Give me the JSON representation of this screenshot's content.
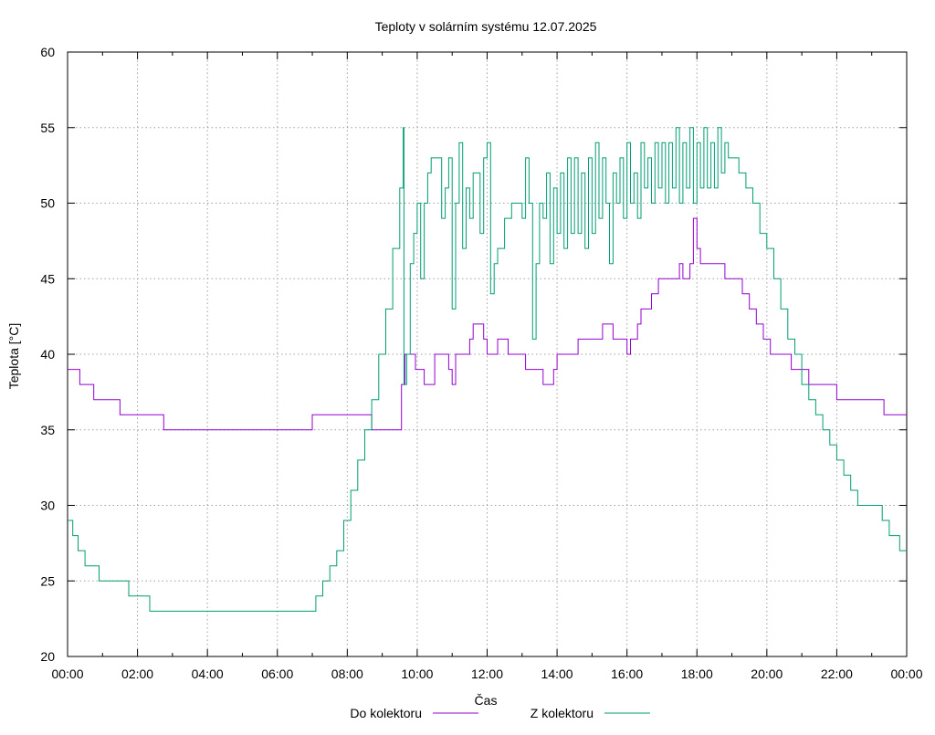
{
  "chart_data": {
    "type": "line",
    "title": "Teploty v solárním systému 12.07.2025",
    "xlabel": "Čas",
    "ylabel": "Teplota [°C]",
    "xlim": [
      0,
      24
    ],
    "ylim": [
      20,
      60
    ],
    "x_ticks": [
      "00:00",
      "02:00",
      "04:00",
      "06:00",
      "08:00",
      "10:00",
      "12:00",
      "14:00",
      "16:00",
      "18:00",
      "20:00",
      "22:00",
      "00:00"
    ],
    "y_ticks": [
      "20",
      "25",
      "30",
      "35",
      "40",
      "45",
      "50",
      "55",
      "60"
    ],
    "grid": true,
    "legend_position": "bottom",
    "series": [
      {
        "name": "Do kolektoru",
        "color": "#9400d3",
        "points": [
          [
            0,
            39
          ],
          [
            0.35,
            39
          ],
          [
            0.35,
            38
          ],
          [
            0.75,
            38
          ],
          [
            0.75,
            37
          ],
          [
            1.5,
            37
          ],
          [
            1.5,
            36
          ],
          [
            2.75,
            36
          ],
          [
            2.75,
            35
          ],
          [
            7,
            35
          ],
          [
            7,
            36
          ],
          [
            8.7,
            36
          ],
          [
            8.7,
            35
          ],
          [
            9.5,
            35
          ],
          [
            9.55,
            38
          ],
          [
            9.65,
            40
          ],
          [
            9.9,
            40
          ],
          [
            9.95,
            39
          ],
          [
            10.1,
            39
          ],
          [
            10.2,
            38
          ],
          [
            10.5,
            40
          ],
          [
            10.8,
            40
          ],
          [
            10.9,
            39
          ],
          [
            11.0,
            38
          ],
          [
            11.1,
            40
          ],
          [
            11.3,
            40
          ],
          [
            11.5,
            41
          ],
          [
            11.6,
            42
          ],
          [
            11.8,
            42
          ],
          [
            11.9,
            41
          ],
          [
            12.0,
            40
          ],
          [
            12.2,
            40
          ],
          [
            12.3,
            41
          ],
          [
            12.5,
            41
          ],
          [
            12.6,
            40
          ],
          [
            13.0,
            40
          ],
          [
            13.1,
            39
          ],
          [
            13.5,
            39
          ],
          [
            13.6,
            38
          ],
          [
            13.8,
            38
          ],
          [
            13.9,
            39
          ],
          [
            14.0,
            40
          ],
          [
            14.5,
            40
          ],
          [
            14.6,
            41
          ],
          [
            15.2,
            41
          ],
          [
            15.3,
            42
          ],
          [
            15.5,
            42
          ],
          [
            15.6,
            41
          ],
          [
            15.9,
            41
          ],
          [
            16.0,
            40
          ],
          [
            16.1,
            41
          ],
          [
            16.3,
            42
          ],
          [
            16.4,
            43
          ],
          [
            16.6,
            43
          ],
          [
            16.7,
            44
          ],
          [
            16.9,
            45
          ],
          [
            17.3,
            45
          ],
          [
            17.5,
            46
          ],
          [
            17.6,
            45
          ],
          [
            17.8,
            46
          ],
          [
            17.9,
            49
          ],
          [
            18.0,
            47
          ],
          [
            18.1,
            46
          ],
          [
            18.6,
            46
          ],
          [
            18.8,
            45
          ],
          [
            19.1,
            45
          ],
          [
            19.3,
            44
          ],
          [
            19.5,
            43
          ],
          [
            19.7,
            42
          ],
          [
            19.9,
            41
          ],
          [
            20.1,
            40
          ],
          [
            20.6,
            40
          ],
          [
            20.7,
            39
          ],
          [
            21.1,
            39
          ],
          [
            21.2,
            38
          ],
          [
            21.9,
            38
          ],
          [
            22.0,
            37
          ],
          [
            23.3,
            37
          ],
          [
            23.35,
            36
          ],
          [
            24,
            36
          ]
        ]
      },
      {
        "name": "Z kolektoru",
        "color": "#009e73",
        "points": [
          [
            0,
            29
          ],
          [
            0.15,
            28
          ],
          [
            0.3,
            27
          ],
          [
            0.5,
            26
          ],
          [
            0.85,
            26
          ],
          [
            0.9,
            25
          ],
          [
            1.7,
            25
          ],
          [
            1.75,
            24
          ],
          [
            2.3,
            24
          ],
          [
            2.35,
            23
          ],
          [
            7.0,
            23
          ],
          [
            7.1,
            24
          ],
          [
            7.3,
            25
          ],
          [
            7.5,
            26
          ],
          [
            7.7,
            27
          ],
          [
            7.9,
            29
          ],
          [
            8.1,
            31
          ],
          [
            8.3,
            33
          ],
          [
            8.5,
            35
          ],
          [
            8.7,
            37
          ],
          [
            8.9,
            40
          ],
          [
            9.1,
            43
          ],
          [
            9.3,
            47
          ],
          [
            9.5,
            51
          ],
          [
            9.6,
            55
          ],
          [
            9.62,
            38
          ],
          [
            9.7,
            40
          ],
          [
            9.8,
            46
          ],
          [
            9.9,
            48
          ],
          [
            10.0,
            50
          ],
          [
            10.1,
            45
          ],
          [
            10.2,
            50
          ],
          [
            10.3,
            52
          ],
          [
            10.4,
            53
          ],
          [
            10.6,
            53
          ],
          [
            10.7,
            49
          ],
          [
            10.8,
            51
          ],
          [
            10.9,
            53
          ],
          [
            11.0,
            43
          ],
          [
            11.1,
            50
          ],
          [
            11.2,
            54
          ],
          [
            11.3,
            47
          ],
          [
            11.4,
            51
          ],
          [
            11.5,
            49
          ],
          [
            11.6,
            52
          ],
          [
            11.7,
            52
          ],
          [
            11.8,
            48
          ],
          [
            11.9,
            53
          ],
          [
            12.0,
            54
          ],
          [
            12.1,
            44
          ],
          [
            12.2,
            46
          ],
          [
            12.3,
            47
          ],
          [
            12.5,
            49
          ],
          [
            12.7,
            50
          ],
          [
            12.9,
            50
          ],
          [
            13.0,
            49
          ],
          [
            13.1,
            53
          ],
          [
            13.2,
            50
          ],
          [
            13.3,
            41
          ],
          [
            13.4,
            46
          ],
          [
            13.5,
            50
          ],
          [
            13.6,
            49
          ],
          [
            13.7,
            52
          ],
          [
            13.8,
            46
          ],
          [
            13.9,
            51
          ],
          [
            14.0,
            48
          ],
          [
            14.1,
            52
          ],
          [
            14.2,
            47
          ],
          [
            14.3,
            53
          ],
          [
            14.4,
            48
          ],
          [
            14.5,
            53
          ],
          [
            14.6,
            48
          ],
          [
            14.7,
            52
          ],
          [
            14.8,
            47
          ],
          [
            14.9,
            53
          ],
          [
            15.0,
            48
          ],
          [
            15.1,
            54
          ],
          [
            15.2,
            49
          ],
          [
            15.3,
            53
          ],
          [
            15.4,
            50
          ],
          [
            15.5,
            46
          ],
          [
            15.6,
            52
          ],
          [
            15.7,
            50
          ],
          [
            15.8,
            53
          ],
          [
            15.9,
            49
          ],
          [
            16.0,
            54
          ],
          [
            16.1,
            50
          ],
          [
            16.2,
            52
          ],
          [
            16.3,
            49
          ],
          [
            16.4,
            54
          ],
          [
            16.5,
            51
          ],
          [
            16.6,
            53
          ],
          [
            16.7,
            50
          ],
          [
            16.8,
            54
          ],
          [
            16.9,
            51
          ],
          [
            17.0,
            54
          ],
          [
            17.1,
            50
          ],
          [
            17.2,
            54
          ],
          [
            17.3,
            51
          ],
          [
            17.4,
            55
          ],
          [
            17.5,
            50
          ],
          [
            17.6,
            54
          ],
          [
            17.7,
            51
          ],
          [
            17.8,
            55
          ],
          [
            17.9,
            50
          ],
          [
            18.0,
            54
          ],
          [
            18.1,
            51
          ],
          [
            18.2,
            55
          ],
          [
            18.3,
            51
          ],
          [
            18.4,
            54
          ],
          [
            18.5,
            51
          ],
          [
            18.6,
            55
          ],
          [
            18.7,
            52
          ],
          [
            18.8,
            54
          ],
          [
            18.9,
            53
          ],
          [
            19.0,
            53
          ],
          [
            19.2,
            52
          ],
          [
            19.4,
            51
          ],
          [
            19.6,
            50
          ],
          [
            19.8,
            48
          ],
          [
            20.0,
            47
          ],
          [
            20.2,
            45
          ],
          [
            20.4,
            43
          ],
          [
            20.6,
            41
          ],
          [
            20.8,
            40
          ],
          [
            21.0,
            38
          ],
          [
            21.2,
            37
          ],
          [
            21.4,
            36
          ],
          [
            21.6,
            35
          ],
          [
            21.8,
            34
          ],
          [
            22.0,
            33
          ],
          [
            22.2,
            32
          ],
          [
            22.4,
            31
          ],
          [
            22.6,
            30
          ],
          [
            22.8,
            30
          ],
          [
            23.2,
            30
          ],
          [
            23.3,
            29
          ],
          [
            23.5,
            28
          ],
          [
            23.8,
            27
          ],
          [
            24,
            27
          ]
        ]
      }
    ]
  }
}
